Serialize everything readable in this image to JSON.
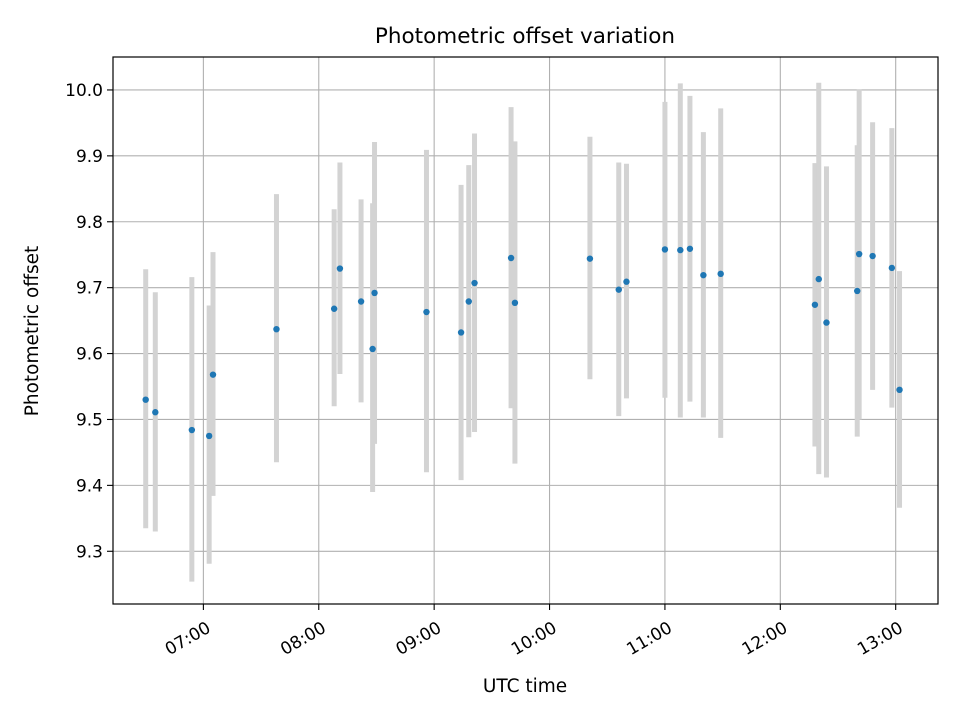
{
  "chart_data": {
    "type": "scatter",
    "title": "Photometric offset variation",
    "xlabel": "UTC time",
    "ylabel": "Photometric offset",
    "x_tick_labels": [
      "07:00",
      "08:00",
      "09:00",
      "10:00",
      "11:00",
      "12:00",
      "13:00"
    ],
    "y_tick_labels": [
      "9.3",
      "9.4",
      "9.5",
      "9.6",
      "9.7",
      "9.8",
      "9.9",
      "10.0"
    ],
    "xlim": [
      "06:13",
      "13:22"
    ],
    "ylim": [
      9.22,
      10.05
    ],
    "grid": true,
    "error_bar_color": "#d3d3d3",
    "point_color": "#1f77b4",
    "points": [
      {
        "x": "06:30",
        "y": 9.53,
        "y_low": 9.335,
        "y_high": 9.728
      },
      {
        "x": "06:35",
        "y": 9.511,
        "y_low": 9.33,
        "y_high": 9.693
      },
      {
        "x": "06:54",
        "y": 9.484,
        "y_low": 9.254,
        "y_high": 9.716
      },
      {
        "x": "07:03",
        "y": 9.475,
        "y_low": 9.281,
        "y_high": 9.673
      },
      {
        "x": "07:05",
        "y": 9.568,
        "y_low": 9.384,
        "y_high": 9.754
      },
      {
        "x": "07:38",
        "y": 9.637,
        "y_low": 9.435,
        "y_high": 9.842
      },
      {
        "x": "08:08",
        "y": 9.668,
        "y_low": 9.52,
        "y_high": 9.819
      },
      {
        "x": "08:11",
        "y": 9.729,
        "y_low": 9.569,
        "y_high": 9.89
      },
      {
        "x": "08:22",
        "y": 9.679,
        "y_low": 9.526,
        "y_high": 9.834
      },
      {
        "x": "08:28",
        "y": 9.607,
        "y_low": 9.39,
        "y_high": 9.828
      },
      {
        "x": "08:29",
        "y": 9.692,
        "y_low": 9.463,
        "y_high": 9.921
      },
      {
        "x": "08:56",
        "y": 9.663,
        "y_low": 9.42,
        "y_high": 9.909
      },
      {
        "x": "09:14",
        "y": 9.632,
        "y_low": 9.408,
        "y_high": 9.856
      },
      {
        "x": "09:18",
        "y": 9.679,
        "y_low": 9.473,
        "y_high": 9.886
      },
      {
        "x": "09:21",
        "y": 9.707,
        "y_low": 9.481,
        "y_high": 9.934
      },
      {
        "x": "09:40",
        "y": 9.745,
        "y_low": 9.517,
        "y_high": 9.974
      },
      {
        "x": "09:42",
        "y": 9.677,
        "y_low": 9.433,
        "y_high": 9.922
      },
      {
        "x": "10:21",
        "y": 9.744,
        "y_low": 9.561,
        "y_high": 9.929
      },
      {
        "x": "10:36",
        "y": 9.697,
        "y_low": 9.505,
        "y_high": 9.89
      },
      {
        "x": "10:40",
        "y": 9.709,
        "y_low": 9.532,
        "y_high": 9.888
      },
      {
        "x": "11:00",
        "y": 9.758,
        "y_low": 9.533,
        "y_high": 9.982
      },
      {
        "x": "11:08",
        "y": 9.757,
        "y_low": 9.503,
        "y_high": 10.01
      },
      {
        "x": "11:13",
        "y": 9.759,
        "y_low": 9.527,
        "y_high": 9.991
      },
      {
        "x": "11:20",
        "y": 9.719,
        "y_low": 9.503,
        "y_high": 9.936
      },
      {
        "x": "11:29",
        "y": 9.721,
        "y_low": 9.472,
        "y_high": 9.972
      },
      {
        "x": "12:18",
        "y": 9.674,
        "y_low": 9.459,
        "y_high": 9.889
      },
      {
        "x": "12:20",
        "y": 9.713,
        "y_low": 9.417,
        "y_high": 10.011
      },
      {
        "x": "12:24",
        "y": 9.647,
        "y_low": 9.412,
        "y_high": 9.884
      },
      {
        "x": "12:40",
        "y": 9.695,
        "y_low": 9.474,
        "y_high": 9.916
      },
      {
        "x": "12:41",
        "y": 9.751,
        "y_low": 9.5,
        "y_high": 10.001
      },
      {
        "x": "12:48",
        "y": 9.748,
        "y_low": 9.545,
        "y_high": 9.951
      },
      {
        "x": "12:58",
        "y": 9.73,
        "y_low": 9.518,
        "y_high": 9.942
      },
      {
        "x": "13:02",
        "y": 9.545,
        "y_low": 9.366,
        "y_high": 9.725
      }
    ]
  }
}
